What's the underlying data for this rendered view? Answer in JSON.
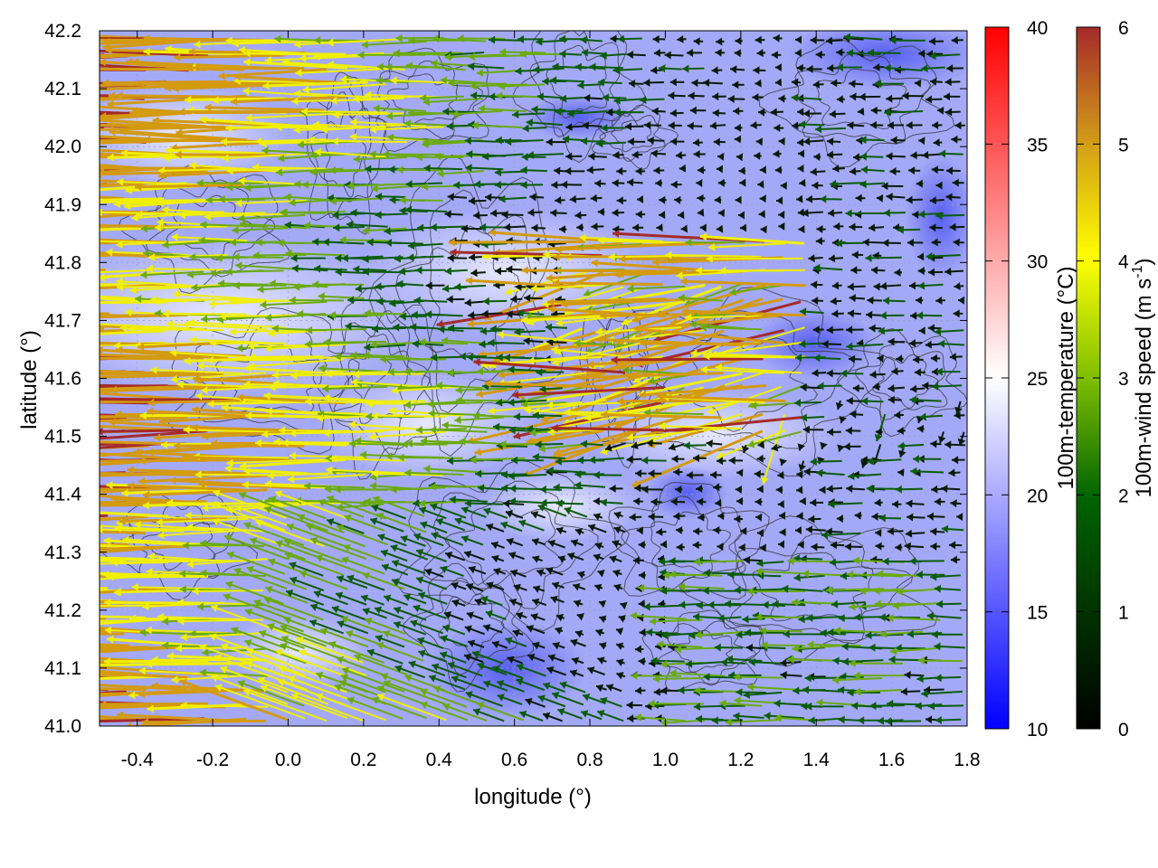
{
  "map": {
    "xlabel": "longitude (°)",
    "ylabel": "latitude (°)",
    "x_ticks": [
      "-0.4",
      "-0.2",
      "0.0",
      "0.2",
      "0.4",
      "0.6",
      "0.8",
      "1.0",
      "1.2",
      "1.4",
      "1.6",
      "1.8"
    ],
    "y_ticks": [
      "41.0",
      "41.1",
      "41.2",
      "41.3",
      "41.4",
      "41.5",
      "41.6",
      "41.7",
      "41.8",
      "41.9",
      "42.0",
      "42.1",
      "42.2"
    ],
    "xlim": [
      -0.5,
      1.8
    ],
    "ylim": [
      41.0,
      42.2
    ],
    "grid": true,
    "contours": "terrain elevation (black lines)",
    "field": "100m-temperature shading",
    "vectors": "100m-wind arrows colored by speed"
  },
  "temperature_colorbar": {
    "label": "100m-temperature (°C)",
    "ticks": [
      "10",
      "15",
      "20",
      "25",
      "30",
      "35",
      "40"
    ],
    "range": [
      10,
      40
    ],
    "colors": [
      "#0000ff",
      "#ffffff",
      "#ff0000"
    ]
  },
  "wind_colorbar": {
    "label_main": "100m-wind speed (m s",
    "label_sup": "-1",
    "label_end": ")",
    "ticks": [
      "0",
      "1",
      "2",
      "3",
      "4",
      "5",
      "6"
    ],
    "range": [
      0,
      6
    ],
    "colors": [
      "#000000",
      "#006400",
      "#7fbf00",
      "#ffff00",
      "#d4a017",
      "#a52a2a"
    ]
  }
}
